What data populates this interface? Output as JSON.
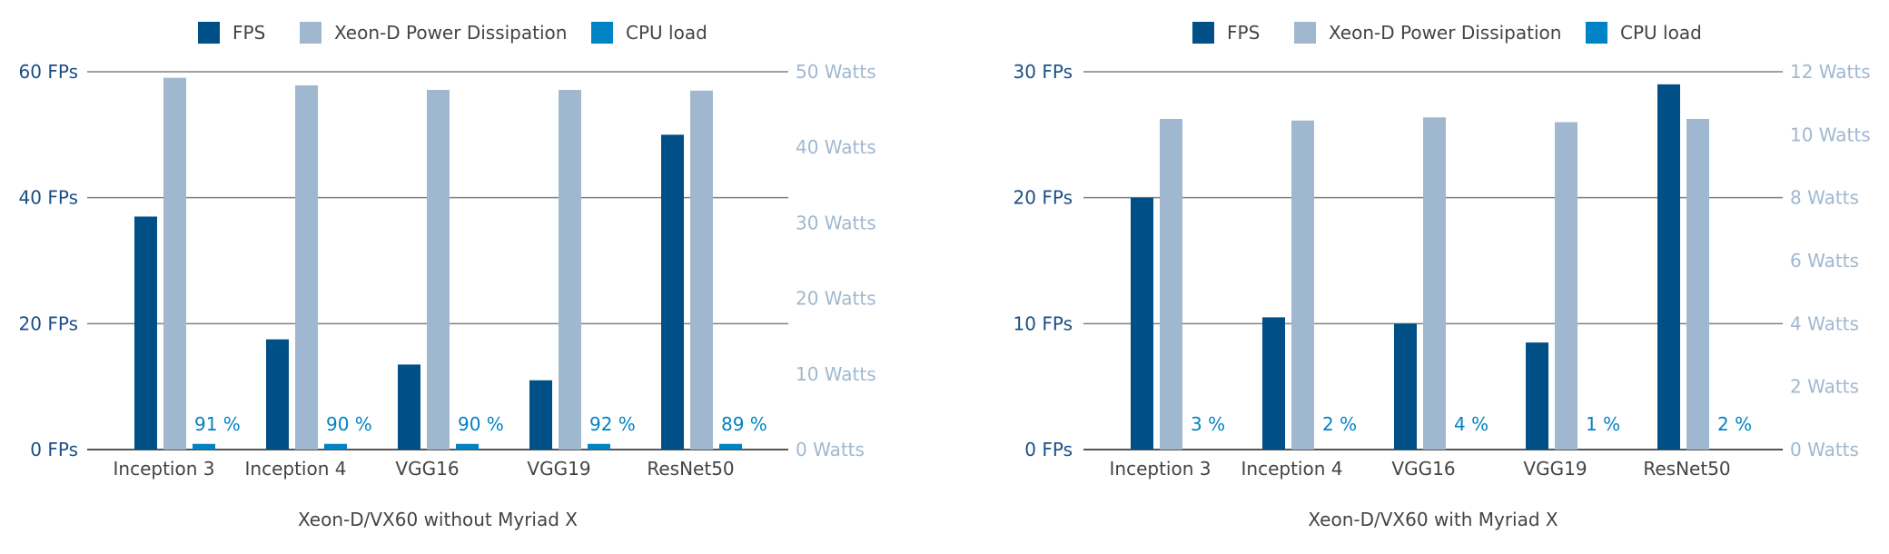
{
  "colors": {
    "fps": "#004f86",
    "power": "#a0b8cf",
    "cpu": "#0083c5",
    "axis_left": "#1b4f86",
    "axis_right": "#a0b8cf",
    "grid": "#808080",
    "text": "#444444"
  },
  "chart_data": [
    {
      "type": "bar",
      "title": "Xeon-D/VX60 without Myriad X",
      "categories": [
        "Inception 3",
        "Inception 4",
        "VGG16",
        "VGG19",
        "ResNet50"
      ],
      "legend": {
        "placement": "top",
        "entries": [
          "FPS",
          "Xeon-D Power Dissipation",
          "CPU load"
        ]
      },
      "y_left": {
        "ticks": [
          0,
          20,
          40,
          60
        ],
        "tick_labels": [
          "0 FPs",
          "20 FPs",
          "40 FPs",
          "60 FPs"
        ],
        "ylim": [
          0,
          60
        ]
      },
      "y_right": {
        "ticks": [
          0,
          10,
          20,
          30,
          40,
          50
        ],
        "tick_labels": [
          "0 Watts",
          "10 Watts",
          "20 Watts",
          "30 Watts",
          "40 Watts",
          "50 Watts"
        ],
        "ylim": [
          0,
          50
        ]
      },
      "grid": true,
      "series": [
        {
          "name": "FPS",
          "axis": "left",
          "values": [
            37,
            17.5,
            13.5,
            11,
            50
          ]
        },
        {
          "name": "Xeon-D Power Dissipation",
          "axis": "right",
          "values": [
            49.2,
            48.2,
            47.6,
            47.6,
            47.5
          ]
        },
        {
          "name": "CPU load",
          "axis": "left",
          "values": [
            0.9,
            0.9,
            0.9,
            0.9,
            0.9
          ],
          "labels": [
            "91 %",
            "90 %",
            "90 %",
            "92 %",
            "89 %"
          ]
        }
      ]
    },
    {
      "type": "bar",
      "title": "Xeon-D/VX60 with Myriad X",
      "categories": [
        "Inception 3",
        "Inception 4",
        "VGG16",
        "VGG19",
        "ResNet50"
      ],
      "legend": {
        "placement": "top",
        "entries": [
          "FPS",
          "Xeon-D Power Dissipation",
          "CPU load"
        ]
      },
      "y_left": {
        "ticks": [
          0,
          10,
          20,
          30
        ],
        "tick_labels": [
          "0 FPs",
          "10 FPs",
          "20 FPs",
          "30 FPs"
        ],
        "ylim": [
          0,
          30
        ]
      },
      "y_right": {
        "ticks": [
          0,
          2,
          4,
          6,
          8,
          10,
          12
        ],
        "tick_labels": [
          "0 Watts",
          "2 Watts",
          "4 Watts",
          "6 Watts",
          "8 Watts",
          "10 Watts",
          "12 Watts"
        ],
        "ylim": [
          0,
          12
        ]
      },
      "grid": true,
      "series": [
        {
          "name": "FPS",
          "axis": "left",
          "values": [
            20,
            10.5,
            10,
            8.5,
            29
          ]
        },
        {
          "name": "Xeon-D Power Dissipation",
          "axis": "right",
          "values": [
            10.5,
            10.45,
            10.55,
            10.4,
            10.5
          ]
        },
        {
          "name": "CPU load",
          "axis": "left",
          "values": [
            0,
            0,
            0,
            0,
            0
          ],
          "labels": [
            "3 %",
            "2 %",
            "4 %",
            "1 %",
            "2 %"
          ]
        }
      ]
    }
  ]
}
